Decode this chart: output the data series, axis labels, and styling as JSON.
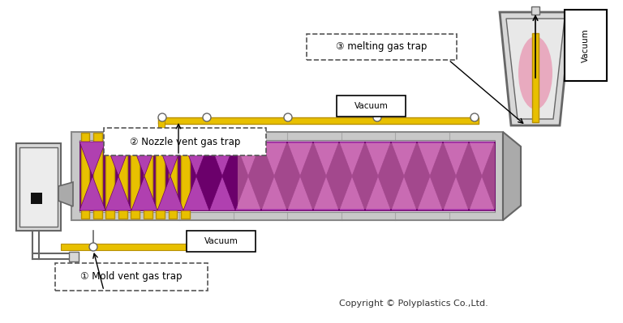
{
  "bg_color": "#ffffff",
  "barrel_outer": "#c8c8c8",
  "barrel_inner": "#e8e8e8",
  "barrel_edge": "#888888",
  "screw_purple": "#6b006b",
  "screw_purple_light": "#b040b0",
  "screw_pink": "#e8b0c8",
  "pink_melt": "#e8a0b8",
  "gold": "#e8c000",
  "gold_dark": "#b89000",
  "gray_light": "#d8d8d8",
  "gray_mid": "#aaaaaa",
  "gray_dark": "#666666",
  "white": "#ffffff",
  "black": "#000000",
  "label1": "① Mold vent gas trap",
  "label2": "② Nozzle vent gas trap",
  "label3": "③ melting gas trap",
  "copyright": "Copyright © Polyplastics Co.,Ltd.",
  "label_fs": 8.5,
  "small_fs": 7.5,
  "copy_fs": 8
}
